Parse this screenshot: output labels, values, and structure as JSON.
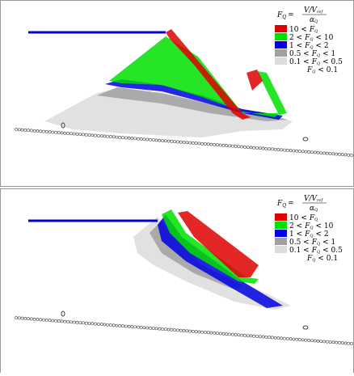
{
  "panels": [
    {
      "formula": {
        "lhs": [
          "F",
          "Q",
          "="
        ],
        "numerator": "V/V",
        "numerator_sub": "ref",
        "denominator": "α",
        "denominator_sub": "Q"
      },
      "legend": [
        {
          "parts": [
            "10 <",
            "F",
            "Q"
          ],
          "color": "#e00000"
        },
        {
          "parts": [
            "2 <",
            "F",
            "Q",
            "< 10"
          ],
          "color": "#00e000"
        },
        {
          "parts": [
            "1 <",
            "F",
            "Q",
            "< 2"
          ],
          "color": "#0000e0"
        },
        {
          "parts": [
            "0.5 <",
            "F",
            "Q",
            "< 1"
          ],
          "color": "#a0a0a0"
        },
        {
          "parts": [
            "0.1 <",
            "F",
            "Q",
            "< 0.5"
          ],
          "color": "#dcdcdc"
        },
        {
          "parts": [
            "F",
            "Q",
            "< 0.1"
          ]
        }
      ]
    },
    {
      "formula": {
        "lhs": [
          "F",
          "Q",
          "="
        ],
        "numerator": "V/V",
        "numerator_sub": "ref",
        "denominator": "α",
        "denominator_sub": "Q"
      },
      "legend": [
        {
          "parts": [
            "10 <",
            "F",
            "Q"
          ],
          "color": "#e00000"
        },
        {
          "parts": [
            "2 <",
            "F",
            "Q",
            "< 10"
          ],
          "color": "#00e000"
        },
        {
          "parts": [
            "1 <",
            "F",
            "Q",
            "< 2"
          ],
          "color": "#0000e0"
        },
        {
          "parts": [
            "0.5 <",
            "F",
            "Q",
            "< 1"
          ],
          "color": "#a0a0a0"
        },
        {
          "parts": [
            "0.1 <",
            "F",
            "Q",
            "< 0.5"
          ],
          "color": "#dcdcdc"
        },
        {
          "parts": [
            "F",
            "Q",
            "< 0.1"
          ]
        }
      ]
    }
  ]
}
